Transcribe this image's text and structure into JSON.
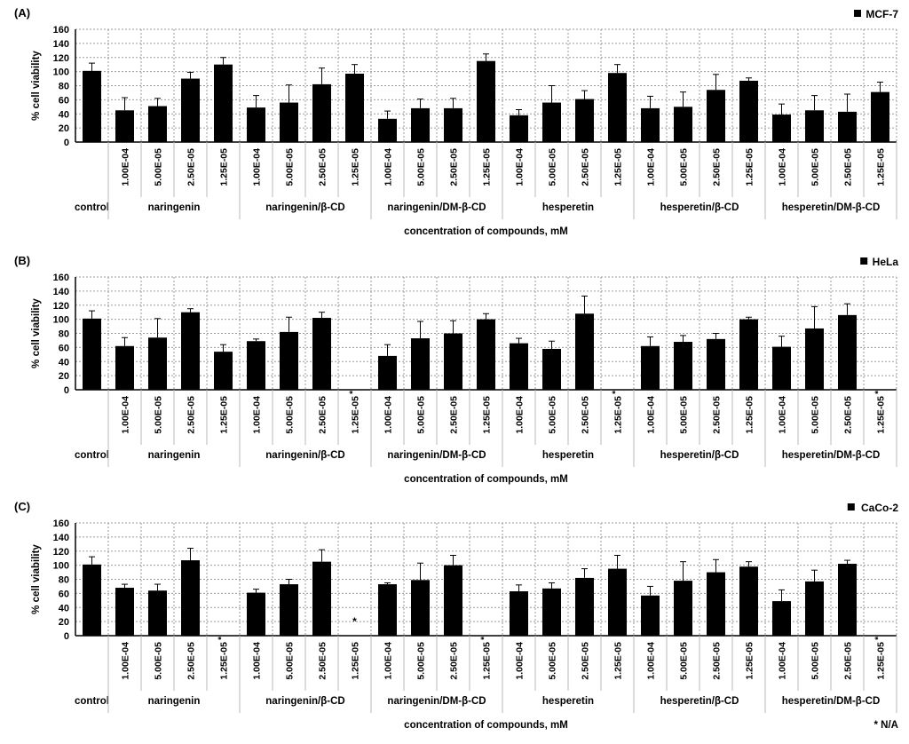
{
  "figure": {
    "ylabel": "% cell viability",
    "xlabel": "concentration of compounds, mM",
    "na_note": "* N/A",
    "bar_color": "#000000",
    "grid_color": "#9a9a9a",
    "separator_color": "#b8b8b8"
  },
  "chart_data": [
    {
      "type": "bar",
      "panel_tag": "(A)",
      "legend": "MCF-7",
      "ylabel": "% cell viability",
      "xlabel": "concentration of compounds, mM",
      "ylim": [
        0,
        160
      ],
      "yticks": [
        0,
        20,
        40,
        60,
        80,
        100,
        120,
        140,
        160
      ],
      "grid": true,
      "legend_position": "top-right",
      "groups": [
        {
          "label": "control",
          "bars": [
            {
              "conc": "",
              "value": 101,
              "err": 11
            }
          ]
        },
        {
          "label": "naringenin",
          "bars": [
            {
              "conc": "1.00E-04",
              "value": 45,
              "err": 18
            },
            {
              "conc": "5.00E-05",
              "value": 51,
              "err": 11
            },
            {
              "conc": "2.50E-05",
              "value": 90,
              "err": 9
            },
            {
              "conc": "1.25E-05",
              "value": 110,
              "err": 10
            }
          ]
        },
        {
          "label": "naringenin/β-CD",
          "bars": [
            {
              "conc": "1.00E-04",
              "value": 49,
              "err": 17
            },
            {
              "conc": "5.00E-05",
              "value": 56,
              "err": 25
            },
            {
              "conc": "2.50E-05",
              "value": 82,
              "err": 23
            },
            {
              "conc": "1.25E-05",
              "value": 97,
              "err": 13
            }
          ]
        },
        {
          "label": "naringenin/DM-β-CD",
          "bars": [
            {
              "conc": "1.00E-04",
              "value": 33,
              "err": 11
            },
            {
              "conc": "5.00E-05",
              "value": 48,
              "err": 13
            },
            {
              "conc": "2.50E-05",
              "value": 48,
              "err": 14
            },
            {
              "conc": "1.25E-05",
              "value": 115,
              "err": 10
            }
          ]
        },
        {
          "label": "hesperetin",
          "bars": [
            {
              "conc": "1.00E-04",
              "value": 38,
              "err": 8
            },
            {
              "conc": "5.00E-05",
              "value": 56,
              "err": 24
            },
            {
              "conc": "2.50E-05",
              "value": 61,
              "err": 12
            },
            {
              "conc": "1.25E-05",
              "value": 98,
              "err": 12
            }
          ]
        },
        {
          "label": "hesperetin/β-CD",
          "bars": [
            {
              "conc": "1.00E-04",
              "value": 48,
              "err": 17
            },
            {
              "conc": "5.00E-05",
              "value": 50,
              "err": 21
            },
            {
              "conc": "2.50E-05",
              "value": 74,
              "err": 22
            },
            {
              "conc": "1.25E-05",
              "value": 87,
              "err": 4
            }
          ]
        },
        {
          "label": "hesperetin/DM-β-CD",
          "bars": [
            {
              "conc": "1.00E-04",
              "value": 39,
              "err": 15
            },
            {
              "conc": "5.00E-05",
              "value": 45,
              "err": 21
            },
            {
              "conc": "2.50E-05",
              "value": 43,
              "err": 25
            },
            {
              "conc": "1.25E-05",
              "value": 71,
              "err": 14
            }
          ]
        }
      ]
    },
    {
      "type": "bar",
      "panel_tag": "(B)",
      "legend": "HeLa",
      "ylabel": "% cell viability",
      "xlabel": "concentration of compounds, mM",
      "ylim": [
        0,
        160
      ],
      "yticks": [
        0,
        20,
        40,
        60,
        80,
        100,
        120,
        140,
        160
      ],
      "grid": true,
      "legend_position": "top-right",
      "groups": [
        {
          "label": "control",
          "bars": [
            {
              "conc": "",
              "value": 101,
              "err": 11
            }
          ]
        },
        {
          "label": "naringenin",
          "bars": [
            {
              "conc": "1.00E-04",
              "value": 62,
              "err": 12
            },
            {
              "conc": "5.00E-05",
              "value": 74,
              "err": 27
            },
            {
              "conc": "2.50E-05",
              "value": 110,
              "err": 5
            },
            {
              "conc": "1.25E-05",
              "value": 54,
              "err": 10
            }
          ]
        },
        {
          "label": "naringenin/β-CD",
          "bars": [
            {
              "conc": "1.00E-04",
              "value": 69,
              "err": 3
            },
            {
              "conc": "5.00E-05",
              "value": 82,
              "err": 21
            },
            {
              "conc": "2.50E-05",
              "value": 102,
              "err": 8
            },
            {
              "conc": "1.25E-05",
              "value": null,
              "na": true,
              "star": "label"
            }
          ]
        },
        {
          "label": "naringenin/DM-β-CD",
          "bars": [
            {
              "conc": "1.00E-04",
              "value": 48,
              "err": 16
            },
            {
              "conc": "5.00E-05",
              "value": 73,
              "err": 24
            },
            {
              "conc": "2.50E-05",
              "value": 80,
              "err": 18
            },
            {
              "conc": "1.25E-05",
              "value": 100,
              "err": 8
            }
          ]
        },
        {
          "label": "hesperetin",
          "bars": [
            {
              "conc": "1.00E-04",
              "value": 66,
              "err": 7
            },
            {
              "conc": "5.00E-05",
              "value": 58,
              "err": 11
            },
            {
              "conc": "2.50E-05",
              "value": 108,
              "err": 25
            },
            {
              "conc": "1.25E-05",
              "value": null,
              "na": true,
              "star": "label"
            }
          ]
        },
        {
          "label": "hesperetin/β-CD",
          "bars": [
            {
              "conc": "1.00E-04",
              "value": 62,
              "err": 13
            },
            {
              "conc": "5.00E-05",
              "value": 68,
              "err": 9
            },
            {
              "conc": "2.50E-05",
              "value": 72,
              "err": 8
            },
            {
              "conc": "1.25E-05",
              "value": 100,
              "err": 3
            }
          ]
        },
        {
          "label": "hesperetin/DM-β-CD",
          "bars": [
            {
              "conc": "1.00E-04",
              "value": 61,
              "err": 15
            },
            {
              "conc": "5.00E-05",
              "value": 87,
              "err": 31
            },
            {
              "conc": "2.50E-05",
              "value": 106,
              "err": 16
            },
            {
              "conc": "1.25E-05",
              "value": null,
              "na": true,
              "star": "label"
            }
          ]
        }
      ]
    },
    {
      "type": "bar",
      "panel_tag": "(C)",
      "legend": "CaCo-2",
      "ylabel": "% cell viability",
      "xlabel": "concentration of compounds, mM",
      "ylim": [
        0,
        160
      ],
      "yticks": [
        0,
        20,
        40,
        60,
        80,
        100,
        120,
        140,
        160
      ],
      "grid": true,
      "legend_position": "top-right",
      "na_note": "* N/A",
      "groups": [
        {
          "label": "control",
          "bars": [
            {
              "conc": "",
              "value": 101,
              "err": 11
            }
          ]
        },
        {
          "label": "naringenin",
          "bars": [
            {
              "conc": "1.00E-04",
              "value": 68,
              "err": 5
            },
            {
              "conc": "5.00E-05",
              "value": 64,
              "err": 9
            },
            {
              "conc": "2.50E-05",
              "value": 107,
              "err": 17
            },
            {
              "conc": "1.25E-05",
              "value": null,
              "na": true,
              "star": "label"
            }
          ]
        },
        {
          "label": "naringenin/β-CD",
          "bars": [
            {
              "conc": "1.00E-04",
              "value": 61,
              "err": 5
            },
            {
              "conc": "5.00E-05",
              "value": 73,
              "err": 7
            },
            {
              "conc": "2.50E-05",
              "value": 105,
              "err": 17
            },
            {
              "conc": "1.25E-05",
              "value": null,
              "na": true,
              "star": "plot"
            }
          ]
        },
        {
          "label": "naringenin/DM-β-CD",
          "bars": [
            {
              "conc": "1.00E-04",
              "value": 73,
              "err": 2
            },
            {
              "conc": "5.00E-05",
              "value": 79,
              "err": 24
            },
            {
              "conc": "2.50E-05",
              "value": 100,
              "err": 14
            },
            {
              "conc": "1.25E-05",
              "value": null,
              "na": true,
              "star": "label"
            }
          ]
        },
        {
          "label": "hesperetin",
          "bars": [
            {
              "conc": "1.00E-04",
              "value": 63,
              "err": 9
            },
            {
              "conc": "5.00E-05",
              "value": 67,
              "err": 8
            },
            {
              "conc": "2.50E-05",
              "value": 82,
              "err": 13
            },
            {
              "conc": "1.25E-05",
              "value": 95,
              "err": 19
            }
          ]
        },
        {
          "label": "hesperetin/β-CD",
          "bars": [
            {
              "conc": "1.00E-04",
              "value": 57,
              "err": 13
            },
            {
              "conc": "5.00E-05",
              "value": 78,
              "err": 27
            },
            {
              "conc": "2.50E-05",
              "value": 90,
              "err": 18
            },
            {
              "conc": "1.25E-05",
              "value": 98,
              "err": 7
            }
          ]
        },
        {
          "label": "hesperetin/DM-β-CD",
          "bars": [
            {
              "conc": "1.00E-04",
              "value": 49,
              "err": 16
            },
            {
              "conc": "5.00E-05",
              "value": 77,
              "err": 16
            },
            {
              "conc": "2.50E-05",
              "value": 102,
              "err": 5
            },
            {
              "conc": "1.25E-05",
              "value": null,
              "na": true,
              "star": "label"
            }
          ]
        }
      ]
    }
  ]
}
